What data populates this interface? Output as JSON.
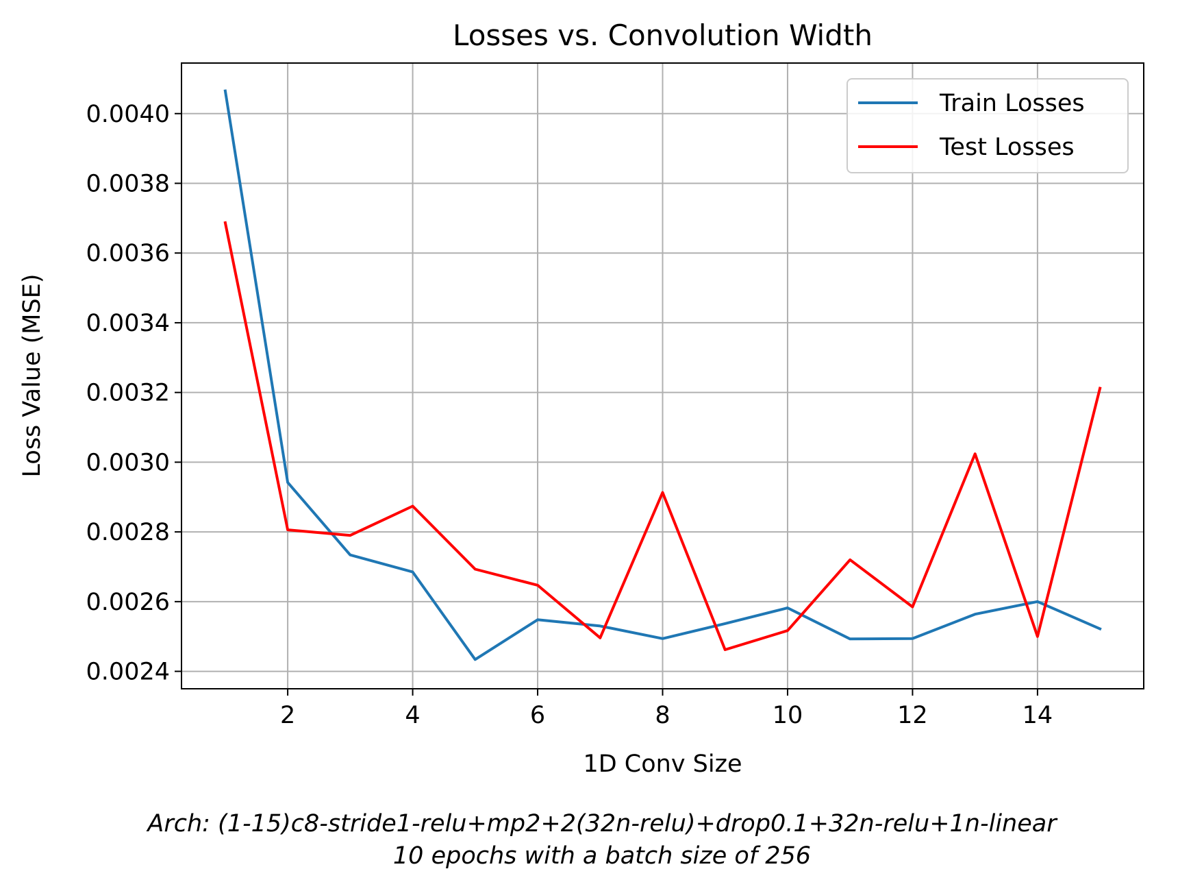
{
  "chart_data": {
    "type": "line",
    "title": "Losses vs. Convolution Width",
    "xlabel": "1D Conv Size",
    "ylabel": "Loss Value (MSE)",
    "x": [
      1,
      2,
      3,
      4,
      5,
      6,
      7,
      8,
      9,
      10,
      11,
      12,
      13,
      14,
      15
    ],
    "xlim": [
      0.3,
      15.7
    ],
    "ylim": [
      0.00235,
      0.004145
    ],
    "x_ticks": [
      2,
      4,
      6,
      8,
      10,
      12,
      14
    ],
    "x_tick_labels": [
      "2",
      "4",
      "6",
      "8",
      "10",
      "12",
      "14"
    ],
    "y_ticks": [
      0.0024,
      0.0026,
      0.0028,
      0.003,
      0.0032,
      0.0034,
      0.0036,
      0.0038,
      0.004
    ],
    "y_tick_labels": [
      "0.0024",
      "0.0026",
      "0.0028",
      "0.0030",
      "0.0032",
      "0.0034",
      "0.0036",
      "0.0038",
      "0.0040"
    ],
    "grid": true,
    "legend_position": "top-right",
    "series": [
      {
        "name": "Train Losses",
        "color": "#1f77b4",
        "values": [
          0.004065,
          0.002942,
          0.002734,
          0.002685,
          0.002434,
          0.002548,
          0.00253,
          0.002494,
          0.002537,
          0.002582,
          0.002493,
          0.002494,
          0.002564,
          0.0026,
          0.002522
        ]
      },
      {
        "name": "Test Losses",
        "color": "#ff0000",
        "values": [
          0.003687,
          0.002806,
          0.00279,
          0.002874,
          0.002693,
          0.002647,
          0.002496,
          0.002913,
          0.002462,
          0.002517,
          0.00272,
          0.002585,
          0.003024,
          0.0025,
          0.003212
        ]
      }
    ]
  },
  "caption": {
    "line1": "Arch: (1-15)c8-stride1-relu+mp2+2(32n-relu)+drop0.1+32n-relu+1n-linear",
    "line2": "10 epochs with a batch size of 256"
  }
}
